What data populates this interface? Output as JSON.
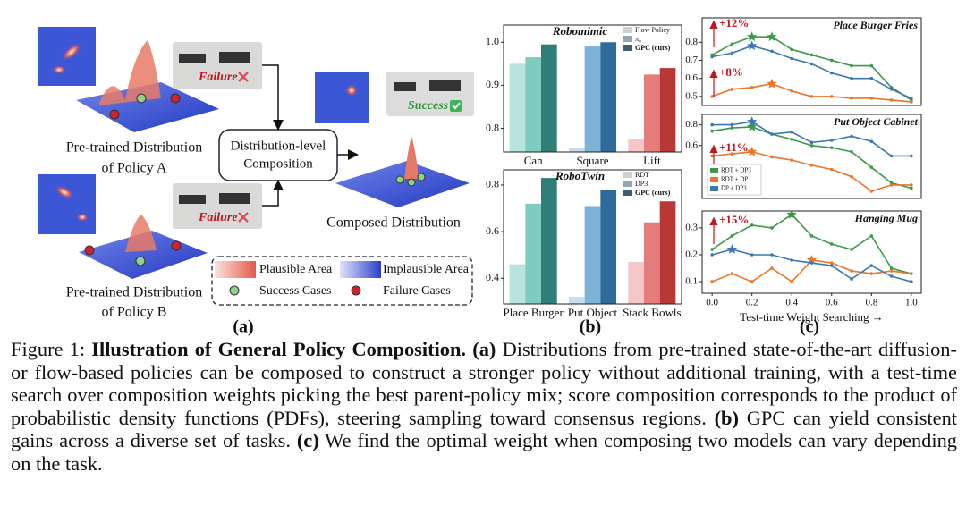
{
  "diagram": {
    "failure_a": "Failure",
    "failure_b": "Failure",
    "success": "Success",
    "policy_a": [
      "Pre-trained Distribution",
      "of Policy A"
    ],
    "policy_b": [
      "Pre-trained Distribution",
      "of Policy B"
    ],
    "composition": [
      "Distribution-level",
      "Composition"
    ],
    "composed": "Composed Distribution",
    "legend": {
      "plausible": "Plausible Area",
      "implausible": "Implausible Area",
      "success": "Success Cases",
      "failure": "Failure Cases"
    }
  },
  "panel_labels": [
    "(a)",
    "(b)",
    "(c)"
  ],
  "chart_data": [
    {
      "type": "bar",
      "title": "Robomimic",
      "categories": [
        "Can",
        "Square",
        "Lift"
      ],
      "series": [
        {
          "name": "Flow Policy",
          "color": "#c9d3d6",
          "values": [
            0.95,
            0.755,
            0.775
          ]
        },
        {
          "name": "π₀",
          "color": "#8fa8b4",
          "values": [
            0.965,
            0.99,
            0.925
          ]
        },
        {
          "name": "GPC (ours)",
          "color": "#3d5f6e",
          "values": [
            0.995,
            1.0,
            0.94
          ]
        }
      ],
      "palettes": [
        [
          "#b9e3dd",
          "#7fcbc0",
          "#2f7e78"
        ],
        [
          "#c6dcef",
          "#7fb2d8",
          "#2e6a9a"
        ],
        [
          "#f5c6c6",
          "#e57d7d",
          "#b83838"
        ]
      ],
      "ylim": [
        0.745,
        1.04
      ],
      "yticks": [
        0.8,
        0.9,
        {
          "value": 1.0,
          "label": "1.0"
        }
      ],
      "legend": "upper right"
    },
    {
      "type": "bar",
      "title": "RoboTwin",
      "categories": [
        "Place Burger",
        "Put Object",
        "Stack Bowls"
      ],
      "series": [
        {
          "name": "RDT",
          "color": "#c9d3d6",
          "values": [
            0.46,
            0.32,
            0.47
          ]
        },
        {
          "name": "DP3",
          "color": "#8fa8b4",
          "values": [
            0.72,
            0.71,
            0.64
          ]
        },
        {
          "name": "GPC (ours)",
          "color": "#3d5f6e",
          "values": [
            0.83,
            0.78,
            0.73
          ]
        }
      ],
      "palettes": [
        [
          "#b9e3dd",
          "#7fcbc0",
          "#2f7e78"
        ],
        [
          "#c6dcef",
          "#7fb2d8",
          "#2e6a9a"
        ],
        [
          "#f5c6c6",
          "#e57d7d",
          "#b83838"
        ]
      ],
      "ylim": [
        0.29,
        0.865
      ],
      "yticks": [
        0.4,
        0.6,
        0.8
      ],
      "legend": "upper right"
    },
    {
      "type": "line",
      "title": "Place Burger Fries",
      "annotations": [
        "+12%",
        "+8%"
      ],
      "x": [
        0,
        0.1,
        0.2,
        0.3,
        0.4,
        0.5,
        0.6,
        0.7,
        0.8,
        0.9,
        1.0
      ],
      "series": [
        {
          "color": "#3a9a4a",
          "values": [
            0.73,
            0.79,
            0.83,
            0.83,
            0.76,
            0.73,
            0.7,
            0.67,
            0.67,
            0.55,
            0.48
          ]
        },
        {
          "color": "#e8762c",
          "values": [
            0.5,
            0.54,
            0.55,
            0.57,
            0.53,
            0.5,
            0.5,
            0.49,
            0.49,
            0.48,
            0.47
          ]
        },
        {
          "color": "#3a78b5",
          "values": [
            0.72,
            0.74,
            0.78,
            0.75,
            0.71,
            0.68,
            0.63,
            0.6,
            0.6,
            0.54,
            0.49
          ]
        }
      ],
      "xlim": [
        -0.05,
        1.05
      ],
      "ylim": [
        0.45,
        0.935
      ],
      "yticks": [
        0.5,
        0.6,
        0.7,
        0.8
      ]
    },
    {
      "type": "line",
      "title": "Put Object Cabinet",
      "annotations": [
        "+11%"
      ],
      "x": [
        0,
        0.1,
        0.2,
        0.3,
        0.4,
        0.5,
        0.6,
        0.7,
        0.8,
        0.9,
        1.0
      ],
      "series": [
        {
          "name": "RDT + DP3",
          "color": "#3a9a4a",
          "values": [
            0.74,
            0.77,
            0.78,
            0.71,
            0.66,
            0.6,
            0.58,
            0.54,
            0.39,
            0.24,
            0.19
          ]
        },
        {
          "name": "RDT + DP",
          "color": "#e8762c",
          "values": [
            0.5,
            0.52,
            0.54,
            0.49,
            0.46,
            0.41,
            0.37,
            0.3,
            0.16,
            0.22,
            0.22
          ]
        },
        {
          "name": "DP + DP3",
          "color": "#3a78b5",
          "values": [
            0.8,
            0.8,
            0.83,
            0.71,
            0.73,
            0.63,
            0.65,
            0.69,
            0.64,
            0.5,
            0.5
          ]
        }
      ],
      "xlim": [
        -0.05,
        1.05
      ],
      "ylim": [
        0.09,
        0.9
      ],
      "yticks": [
        0.6,
        0.8
      ],
      "legend": "lower left"
    },
    {
      "type": "line",
      "title": "Hanging Mug",
      "annotations": [
        "+15%"
      ],
      "x": [
        0,
        0.1,
        0.2,
        0.3,
        0.4,
        0.5,
        0.6,
        0.7,
        0.8,
        0.9,
        1.0
      ],
      "series": [
        {
          "color": "#3a9a4a",
          "values": [
            0.22,
            0.27,
            0.31,
            0.3,
            0.35,
            0.27,
            0.24,
            0.22,
            0.27,
            0.15,
            0.13
          ]
        },
        {
          "color": "#e8762c",
          "values": [
            0.1,
            0.13,
            0.1,
            0.15,
            0.1,
            0.18,
            0.17,
            0.14,
            0.13,
            0.14,
            0.13
          ]
        },
        {
          "color": "#3a78b5",
          "values": [
            0.2,
            0.22,
            0.2,
            0.2,
            0.18,
            0.17,
            0.16,
            0.11,
            0.16,
            0.12,
            0.1
          ]
        }
      ],
      "xlim": [
        -0.05,
        1.05
      ],
      "ylim": [
        0.057,
        0.363
      ],
      "yticks": [
        0.1,
        0.2,
        0.3
      ],
      "xticks": [
        {
          "value": 0,
          "label": "0.0"
        },
        0.2,
        0.4,
        0.6,
        0.8,
        {
          "value": 1,
          "label": "1.0"
        }
      ],
      "xlabel": "Test-time Weight Searching →"
    }
  ],
  "caption": {
    "label": "Figure 1:",
    "title": "Illustration of General Policy Composition.",
    "parts": [
      {
        "tag": "(a)",
        "text": "Distributions from pre-trained state-of-the-art diffusion- or flow-based policies can be composed to construct a stronger policy without additional training, with a test-time search over composition weights picking the best parent-policy mix; score composition corresponds to the product of probabilistic density functions (PDFs), steering sampling toward consensus regions."
      },
      {
        "tag": "(b)",
        "text": "GPC can yield consistent gains across a diverse set of tasks."
      },
      {
        "tag": "(c)",
        "text": "We find the optimal weight when composing two models can vary depending on the task."
      }
    ]
  }
}
